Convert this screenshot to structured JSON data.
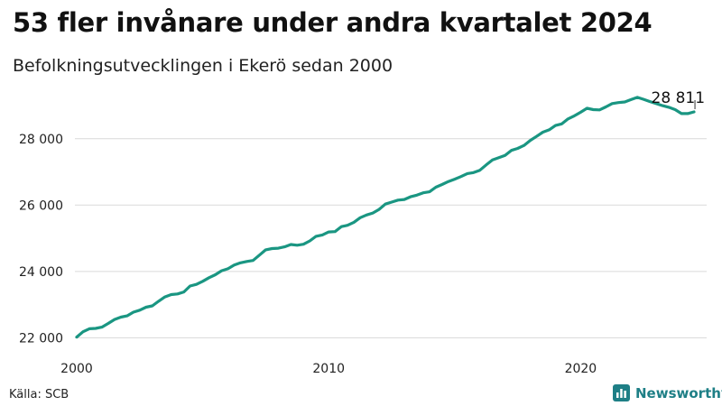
{
  "header": {
    "title": "53 fler invånare under andra kvartalet 2024",
    "subtitle": "Befolkningsutvecklingen i Ekerö sedan 2000"
  },
  "footer": {
    "source": "Källa: SCB",
    "brand": "Newsworthy",
    "brand_icon": "bar-chart-icon"
  },
  "colors": {
    "line": "#1a9682",
    "grid": "#d9d9d9",
    "brand": "#1e7f86"
  },
  "chart_data": {
    "type": "line",
    "title": "53 fler invånare under andra kvartalet 2024",
    "subtitle": "Befolkningsutvecklingen i Ekerö sedan 2000",
    "xlabel": "",
    "ylabel": "",
    "x_ticks": [
      "2000",
      "2010",
      "2020"
    ],
    "y_ticks": [
      "22 000",
      "24 000",
      "26 000",
      "28 000"
    ],
    "y_tick_values": [
      22000,
      24000,
      26000,
      28000
    ],
    "xlim": [
      2000,
      2025
    ],
    "ylim": [
      21900,
      29600
    ],
    "grid": "horizontal",
    "end_label": "28 811",
    "series": [
      {
        "points": [
          [
            2000.0,
            22020
          ],
          [
            2000.25,
            22180
          ],
          [
            2000.5,
            22270
          ],
          [
            2000.75,
            22280
          ],
          [
            2001.0,
            22320
          ],
          [
            2001.25,
            22430
          ],
          [
            2001.5,
            22550
          ],
          [
            2001.75,
            22620
          ],
          [
            2002.0,
            22660
          ],
          [
            2002.25,
            22770
          ],
          [
            2002.5,
            22830
          ],
          [
            2002.75,
            22920
          ],
          [
            2003.0,
            22960
          ],
          [
            2003.25,
            23100
          ],
          [
            2003.5,
            23230
          ],
          [
            2003.75,
            23300
          ],
          [
            2004.0,
            23320
          ],
          [
            2004.25,
            23380
          ],
          [
            2004.5,
            23560
          ],
          [
            2004.75,
            23610
          ],
          [
            2005.0,
            23700
          ],
          [
            2005.25,
            23810
          ],
          [
            2005.5,
            23900
          ],
          [
            2005.75,
            24020
          ],
          [
            2006.0,
            24080
          ],
          [
            2006.25,
            24190
          ],
          [
            2006.5,
            24260
          ],
          [
            2006.75,
            24300
          ],
          [
            2007.0,
            24330
          ],
          [
            2007.25,
            24490
          ],
          [
            2007.5,
            24650
          ],
          [
            2007.75,
            24690
          ],
          [
            2008.0,
            24700
          ],
          [
            2008.25,
            24740
          ],
          [
            2008.5,
            24810
          ],
          [
            2008.75,
            24790
          ],
          [
            2009.0,
            24820
          ],
          [
            2009.25,
            24920
          ],
          [
            2009.5,
            25060
          ],
          [
            2009.75,
            25100
          ],
          [
            2010.0,
            25190
          ],
          [
            2010.25,
            25200
          ],
          [
            2010.5,
            25350
          ],
          [
            2010.75,
            25390
          ],
          [
            2011.0,
            25480
          ],
          [
            2011.25,
            25620
          ],
          [
            2011.5,
            25700
          ],
          [
            2011.75,
            25760
          ],
          [
            2012.0,
            25870
          ],
          [
            2012.25,
            26030
          ],
          [
            2012.5,
            26090
          ],
          [
            2012.75,
            26150
          ],
          [
            2013.0,
            26170
          ],
          [
            2013.25,
            26250
          ],
          [
            2013.5,
            26300
          ],
          [
            2013.75,
            26370
          ],
          [
            2014.0,
            26400
          ],
          [
            2014.25,
            26540
          ],
          [
            2014.5,
            26620
          ],
          [
            2014.75,
            26710
          ],
          [
            2015.0,
            26780
          ],
          [
            2015.25,
            26860
          ],
          [
            2015.5,
            26950
          ],
          [
            2015.75,
            26980
          ],
          [
            2016.0,
            27050
          ],
          [
            2016.25,
            27210
          ],
          [
            2016.5,
            27360
          ],
          [
            2016.75,
            27430
          ],
          [
            2017.0,
            27500
          ],
          [
            2017.25,
            27650
          ],
          [
            2017.5,
            27710
          ],
          [
            2017.75,
            27800
          ],
          [
            2018.0,
            27950
          ],
          [
            2018.25,
            28070
          ],
          [
            2018.5,
            28200
          ],
          [
            2018.75,
            28270
          ],
          [
            2019.0,
            28400
          ],
          [
            2019.25,
            28450
          ],
          [
            2019.5,
            28600
          ],
          [
            2019.75,
            28690
          ],
          [
            2020.0,
            28800
          ],
          [
            2020.25,
            28920
          ],
          [
            2020.5,
            28880
          ],
          [
            2020.75,
            28870
          ],
          [
            2021.0,
            28960
          ],
          [
            2021.25,
            29060
          ],
          [
            2021.5,
            29090
          ],
          [
            2021.75,
            29110
          ],
          [
            2022.0,
            29180
          ],
          [
            2022.25,
            29250
          ],
          [
            2022.5,
            29190
          ],
          [
            2022.75,
            29120
          ],
          [
            2023.0,
            29060
          ],
          [
            2023.25,
            29000
          ],
          [
            2023.5,
            28950
          ],
          [
            2023.75,
            28880
          ],
          [
            2024.0,
            28760
          ],
          [
            2024.25,
            28758
          ],
          [
            2024.5,
            28811
          ]
        ]
      }
    ]
  }
}
